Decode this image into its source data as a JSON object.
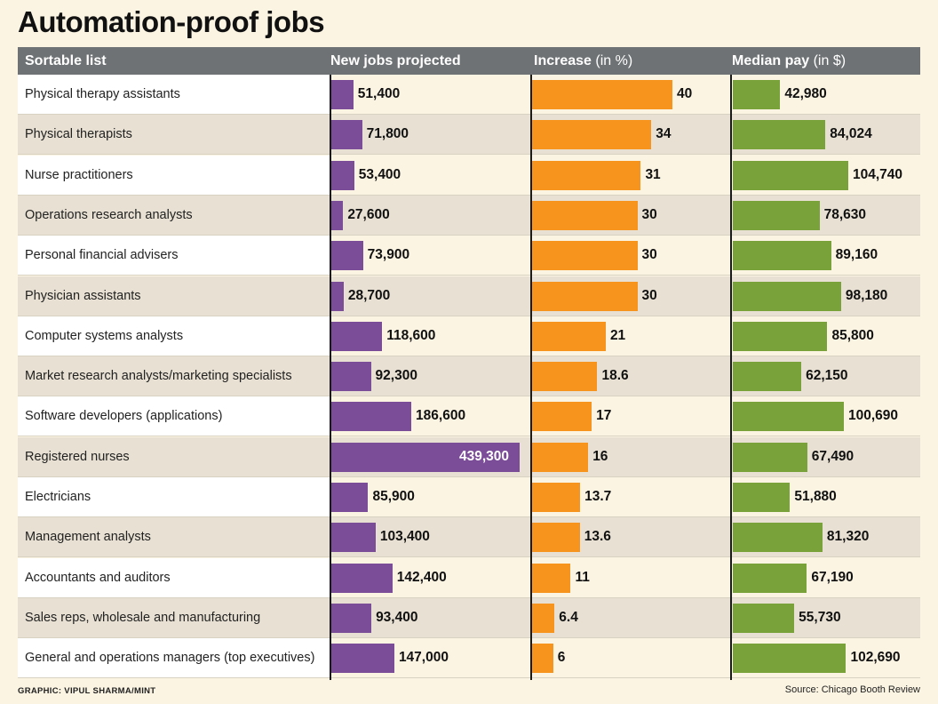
{
  "title": "Automation-proof jobs",
  "columns": {
    "list": "Sortable list",
    "jobs": "New jobs projected",
    "increase": "Increase",
    "increase_unit": "(in %)",
    "pay": "Median pay",
    "pay_unit": "(in $)"
  },
  "footer": {
    "credit": "GRAPHIC: VIPUL SHARMA/MINT",
    "source": "Source: Chicago Booth Review"
  },
  "colors": {
    "jobs": "#7b4c97",
    "increase": "#f7941d",
    "pay": "#7aa23a",
    "header": "#6e7274",
    "row_white": "#ffffff",
    "row_shaded": "#e8e1d3"
  },
  "chart_data": {
    "type": "bar",
    "categories": [
      "Physical therapy assistants",
      "Physical therapists",
      "Nurse practitioners",
      "Operations research analysts",
      "Personal financial advisers",
      "Physician assistants",
      "Computer systems analysts",
      "Market research analysts/marketing specialists",
      "Software developers (applications)",
      "Registered nurses",
      "Electricians",
      "Management analysts",
      "Accountants and auditors",
      "Sales reps, wholesale and manufacturing",
      "General and operations managers (top executives)"
    ],
    "series": [
      {
        "name": "New jobs projected",
        "values": [
          51400,
          71800,
          53400,
          27600,
          73900,
          28700,
          118600,
          92300,
          186600,
          439300,
          85900,
          103400,
          142400,
          93400,
          147000
        ],
        "labels": [
          "51,400",
          "71,800",
          "53,400",
          "27,600",
          "73,900",
          "28,700",
          "118,600",
          "92,300",
          "186,600",
          "439,300",
          "85,900",
          "103,400",
          "142,400",
          "93,400",
          "147,000"
        ]
      },
      {
        "name": "Increase (in %)",
        "values": [
          40,
          34,
          31,
          30,
          30,
          30,
          21,
          18.6,
          17,
          16,
          13.7,
          13.6,
          11,
          6.4,
          6
        ],
        "labels": [
          "40",
          "34",
          "31",
          "30",
          "30",
          "30",
          "21",
          "18.6",
          "17",
          "16",
          "13.7",
          "13.6",
          "11",
          "6.4",
          "6"
        ]
      },
      {
        "name": "Median pay (in $)",
        "values": [
          42980,
          84024,
          104740,
          78630,
          89160,
          98180,
          85800,
          62150,
          100690,
          67490,
          51880,
          81320,
          67190,
          55730,
          102690
        ],
        "labels": [
          "42,980",
          "84,024",
          "104,740",
          "78,630",
          "89,160",
          "98,180",
          "85,800",
          "62,150",
          "100,690",
          "67,490",
          "51,880",
          "81,320",
          "67,190",
          "55,730",
          "102,690"
        ]
      }
    ]
  }
}
